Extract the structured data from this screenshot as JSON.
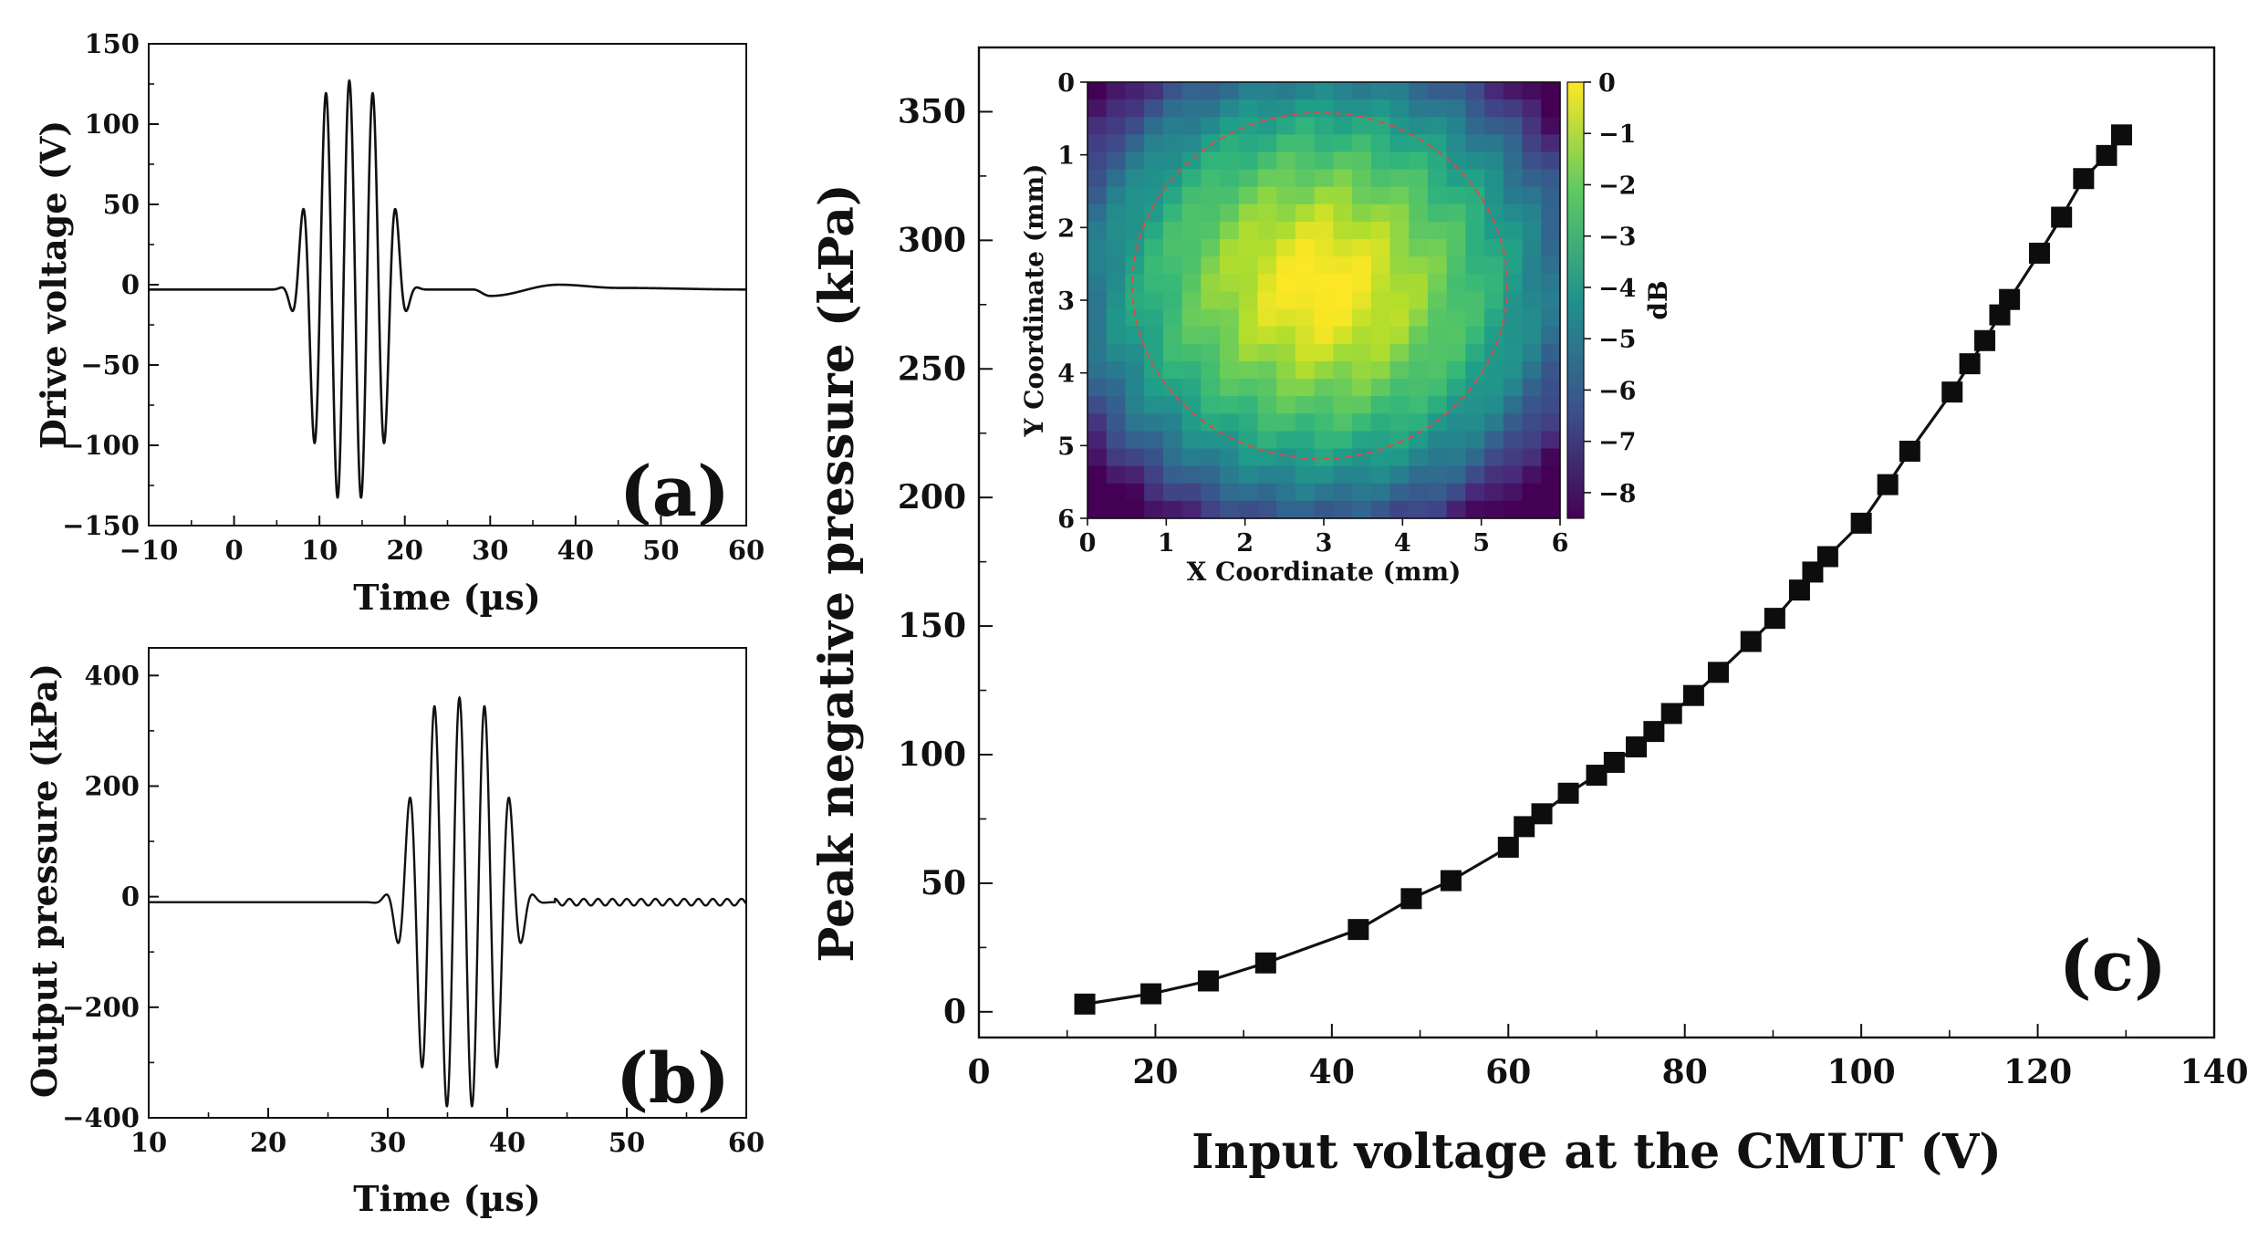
{
  "chart_data": [
    {
      "type": "line",
      "panel_label": "(a)",
      "xlabel": "Time (µs)",
      "ylabel": "Drive voltage (V)",
      "xlim": [
        -10,
        60
      ],
      "ylim": [
        -150,
        150
      ],
      "xticks": [
        -10,
        0,
        10,
        20,
        30,
        40,
        50,
        60
      ],
      "yticks": [
        -150,
        -100,
        -50,
        0,
        50,
        100,
        150
      ],
      "xtick_labels": [
        "−10",
        "0",
        "10",
        "20",
        "30",
        "40",
        "50",
        "60"
      ],
      "ytick_labels": [
        "−150",
        "−100",
        "−50",
        "0",
        "50",
        "100",
        "150"
      ],
      "series": [
        {
          "name": "Drive voltage",
          "description": "Gaussian-windowed tone burst, ~2.8 µs period, peak about 130 V near 13.5 µs, followed by a small slow undershoot",
          "burst_center": 13.5,
          "burst_period": 2.75,
          "burst_peak": 130,
          "burst_sigma": 5.5,
          "baseline": -3,
          "tail": [
            [
              30,
              -7
            ],
            [
              38,
              0
            ],
            [
              45,
              -2
            ],
            [
              60,
              -3
            ]
          ]
        }
      ]
    },
    {
      "type": "line",
      "panel_label": "(b)",
      "xlabel": "Time (µs)",
      "ylabel": "Output pressure (kPa)",
      "xlim": [
        10,
        60
      ],
      "ylim": [
        -400,
        450
      ],
      "xticks": [
        10,
        20,
        30,
        40,
        50,
        60
      ],
      "yticks": [
        -400,
        -200,
        0,
        200,
        400
      ],
      "xtick_labels": [
        "10",
        "20",
        "30",
        "40",
        "50",
        "60"
      ],
      "ytick_labels": [
        "−400",
        "−200",
        "0",
        "200",
        "400"
      ],
      "series": [
        {
          "name": "Output pressure",
          "description": "Acoustic tone burst, peak about 370 kPa near 36 µs, with small ringing tail",
          "burst_center": 36,
          "burst_period": 2.1,
          "burst_peak": 370,
          "burst_sigma": 4.6,
          "baseline": -10,
          "ringing_amplitude": 6
        }
      ]
    },
    {
      "type": "line",
      "panel_label": "(c)",
      "xlabel": "Input voltage at the CMUT (V)",
      "ylabel": "Peak negative pressure (kPa)",
      "xlim": [
        0,
        140
      ],
      "ylim": [
        -10,
        375
      ],
      "xticks": [
        0,
        20,
        40,
        60,
        80,
        100,
        120,
        140
      ],
      "yticks": [
        0,
        50,
        100,
        150,
        200,
        250,
        300,
        350
      ],
      "xtick_labels": [
        "0",
        "20",
        "40",
        "60",
        "80",
        "100",
        "120",
        "140"
      ],
      "ytick_labels": [
        "0",
        "50",
        "100",
        "150",
        "200",
        "250",
        "300",
        "350"
      ],
      "series": [
        {
          "name": "Peak negative pressure",
          "marker": "square",
          "x": [
            12,
            19.5,
            26,
            32.5,
            43,
            49,
            53.5,
            60,
            61.8,
            63.8,
            66.8,
            70,
            72,
            74.5,
            76.5,
            78.5,
            81,
            83.8,
            87.5,
            90.2,
            93,
            94.5,
            96.2,
            100,
            103,
            105.5,
            110.3,
            112.3,
            114,
            115.7,
            116.8,
            120.2,
            122.7,
            125.2,
            127.8,
            129.5
          ],
          "y": [
            3,
            7,
            12,
            19,
            32,
            44,
            51,
            64,
            72,
            77,
            85,
            92,
            97,
            103,
            109,
            116,
            123,
            132,
            144,
            153,
            164,
            171,
            177,
            190,
            205,
            218,
            241,
            252,
            261,
            271,
            277,
            295,
            309,
            324,
            333,
            341
          ]
        }
      ],
      "inset": {
        "type": "heatmap",
        "xlabel": "X Coordinate (mm)",
        "ylabel": "Y Coordinate (mm)",
        "xlim": [
          0,
          6
        ],
        "ylim": [
          0,
          6
        ],
        "xticks": [
          "0",
          "1",
          "2",
          "3",
          "4",
          "5",
          "6"
        ],
        "yticks": [
          "0",
          "1",
          "2",
          "3",
          "4",
          "5",
          "6"
        ],
        "grid_size": [
          25,
          25
        ],
        "center_mm": [
          2.95,
          2.8
        ],
        "colorbar": {
          "label": "dB",
          "range": [
            -8.5,
            0
          ],
          "ticks": [
            "0",
            "−1",
            "−2",
            "−3",
            "−4",
            "−5",
            "−6",
            "−7",
            "−8"
          ]
        },
        "contour": {
          "level_db": -3,
          "style": "dashed",
          "color": "#e04848"
        }
      }
    }
  ],
  "colors": {
    "line": "#111111",
    "marker": "#0d0d0d",
    "contour": "#e04848",
    "colormap": [
      "#440154",
      "#3b528b",
      "#21918c",
      "#5ec962",
      "#fde725"
    ]
  }
}
